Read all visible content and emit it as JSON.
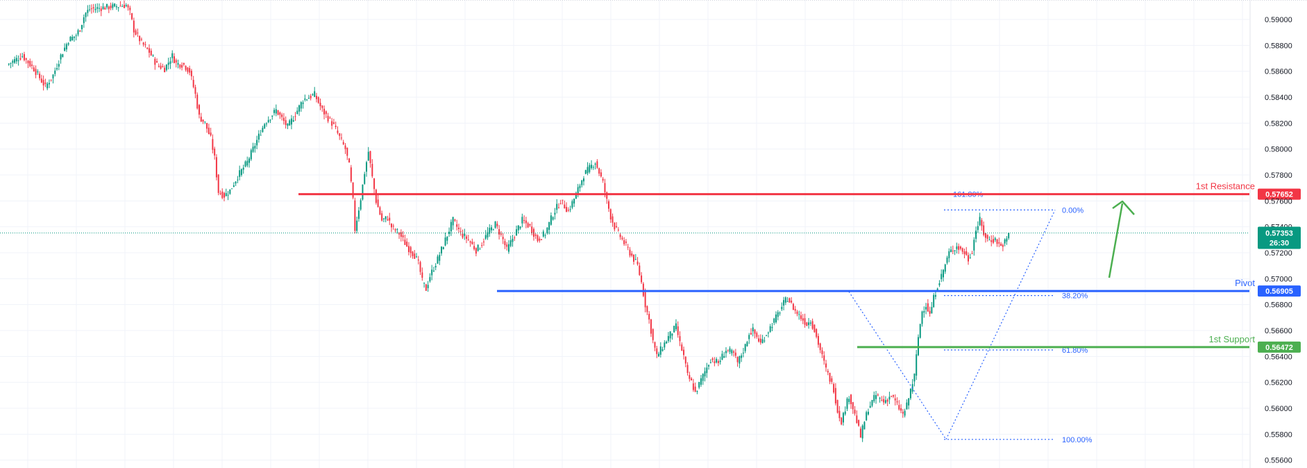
{
  "chart_data": {
    "type": "candlestick",
    "ylim": [
      0.5555,
      0.5915
    ],
    "grid": true,
    "y_ticks": [
      "0.59000",
      "0.58800",
      "0.58600",
      "0.58400",
      "0.58200",
      "0.58000",
      "0.57800",
      "0.57600",
      "0.57400",
      "0.57200",
      "0.57000",
      "0.56800",
      "0.56600",
      "0.56400",
      "0.56200",
      "0.56000",
      "0.55800",
      "0.55600"
    ],
    "current_price": {
      "value": 0.57353,
      "label": "0.57353",
      "countdown": "26:30",
      "color": "#089981"
    },
    "levels": [
      {
        "name": "1st Resistance",
        "value": 0.57652,
        "label": "0.57652",
        "color": "#f23645"
      },
      {
        "name": "Pivot",
        "value": 0.56905,
        "label": "0.56905",
        "color": "#2962ff"
      },
      {
        "name": "1st Support",
        "value": 0.56472,
        "label": "0.56472",
        "color": "#4caf50"
      }
    ],
    "fibonacci": {
      "color": "#2962ff",
      "levels": [
        {
          "label": "161.80%",
          "value": 0.57652
        },
        {
          "label": "0.00%",
          "value": 0.5753
        },
        {
          "label": "38.20%",
          "value": 0.5687
        },
        {
          "label": "61.80%",
          "value": 0.5645
        },
        {
          "label": "100.00%",
          "value": 0.5576
        }
      ]
    },
    "candle_colors": {
      "up": "#089981",
      "down": "#f23645"
    },
    "path_points": [
      [
        0,
        0.5865
      ],
      [
        8,
        0.5872
      ],
      [
        14,
        0.5862
      ],
      [
        20,
        0.5848
      ],
      [
        24,
        0.5857
      ],
      [
        28,
        0.5872
      ],
      [
        32,
        0.5884
      ],
      [
        36,
        0.5888
      ],
      [
        38,
        0.5893
      ],
      [
        40,
        0.5902
      ],
      [
        41,
        0.5905
      ],
      [
        43,
        0.5908
      ],
      [
        62,
        0.5911
      ],
      [
        64,
        0.5905
      ],
      [
        66,
        0.5892
      ],
      [
        70,
        0.5882
      ],
      [
        74,
        0.5875
      ],
      [
        78,
        0.5865
      ],
      [
        82,
        0.5862
      ],
      [
        86,
        0.5872
      ],
      [
        88,
        0.5866
      ],
      [
        92,
        0.5865
      ],
      [
        95,
        0.586
      ],
      [
        98,
        0.5842
      ],
      [
        100,
        0.5825
      ],
      [
        103,
        0.582
      ],
      [
        106,
        0.5808
      ],
      [
        108,
        0.5793
      ],
      [
        110,
        0.5767
      ],
      [
        113,
        0.5764
      ],
      [
        116,
        0.5768
      ],
      [
        120,
        0.5779
      ],
      [
        125,
        0.579
      ],
      [
        128,
        0.58
      ],
      [
        134,
        0.582
      ],
      [
        140,
        0.583
      ],
      [
        146,
        0.5817
      ],
      [
        150,
        0.5827
      ],
      [
        154,
        0.5838
      ],
      [
        160,
        0.5842
      ],
      [
        164,
        0.583
      ],
      [
        170,
        0.5818
      ],
      [
        174,
        0.5806
      ],
      [
        176,
        0.58
      ],
      [
        178,
        0.5787
      ],
      [
        180,
        0.576
      ],
      [
        181,
        0.5738
      ],
      [
        184,
        0.5762
      ],
      [
        186,
        0.5782
      ],
      [
        188,
        0.5798
      ],
      [
        190,
        0.5778
      ],
      [
        192,
        0.576
      ],
      [
        195,
        0.5745
      ],
      [
        198,
        0.5747
      ],
      [
        200,
        0.574
      ],
      [
        204,
        0.5735
      ],
      [
        208,
        0.5725
      ],
      [
        212,
        0.5718
      ],
      [
        214,
        0.5712
      ],
      [
        216,
        0.5698
      ],
      [
        218,
        0.5692
      ],
      [
        220,
        0.5702
      ],
      [
        224,
        0.5715
      ],
      [
        228,
        0.573
      ],
      [
        232,
        0.5745
      ],
      [
        236,
        0.5735
      ],
      [
        240,
        0.573
      ],
      [
        244,
        0.5722
      ],
      [
        246,
        0.5725
      ],
      [
        250,
        0.5735
      ],
      [
        254,
        0.5742
      ],
      [
        258,
        0.573
      ],
      [
        260,
        0.5722
      ],
      [
        264,
        0.5734
      ],
      [
        268,
        0.5745
      ],
      [
        272,
        0.574
      ],
      [
        276,
        0.573
      ],
      [
        280,
        0.5735
      ],
      [
        284,
        0.575
      ],
      [
        288,
        0.576
      ],
      [
        292,
        0.5752
      ],
      [
        296,
        0.5765
      ],
      [
        300,
        0.578
      ],
      [
        304,
        0.5787
      ],
      [
        306,
        0.579
      ],
      [
        308,
        0.5782
      ],
      [
        310,
        0.5774
      ],
      [
        312,
        0.576
      ],
      [
        314,
        0.5748
      ],
      [
        316,
        0.574
      ],
      [
        320,
        0.573
      ],
      [
        324,
        0.572
      ],
      [
        328,
        0.571
      ],
      [
        330,
        0.5697
      ],
      [
        332,
        0.568
      ],
      [
        334,
        0.5668
      ],
      [
        336,
        0.5652
      ],
      [
        338,
        0.564
      ],
      [
        340,
        0.5645
      ],
      [
        344,
        0.5655
      ],
      [
        348,
        0.5663
      ],
      [
        350,
        0.565
      ],
      [
        352,
        0.564
      ],
      [
        354,
        0.5625
      ],
      [
        356,
        0.562
      ],
      [
        358,
        0.5612
      ],
      [
        362,
        0.5625
      ],
      [
        366,
        0.5638
      ],
      [
        370,
        0.5635
      ],
      [
        374,
        0.5645
      ],
      [
        378,
        0.5642
      ],
      [
        380,
        0.5635
      ],
      [
        384,
        0.5648
      ],
      [
        386,
        0.5658
      ],
      [
        388,
        0.566
      ],
      [
        392,
        0.565
      ],
      [
        396,
        0.566
      ],
      [
        400,
        0.567
      ],
      [
        404,
        0.5681
      ],
      [
        406,
        0.5685
      ],
      [
        410,
        0.5675
      ],
      [
        413,
        0.567
      ],
      [
        416,
        0.5665
      ],
      [
        418,
        0.5668
      ],
      [
        420,
        0.566
      ],
      [
        423,
        0.5645
      ],
      [
        426,
        0.563
      ],
      [
        430,
        0.5615
      ],
      [
        432,
        0.5598
      ],
      [
        434,
        0.559
      ],
      [
        436,
        0.56
      ],
      [
        438,
        0.561
      ],
      [
        440,
        0.56
      ],
      [
        442,
        0.559
      ],
      [
        444,
        0.5578
      ],
      [
        446,
        0.559
      ],
      [
        448,
        0.56
      ],
      [
        452,
        0.561
      ],
      [
        456,
        0.5605
      ],
      [
        460,
        0.561
      ],
      [
        464,
        0.56
      ],
      [
        466,
        0.5595
      ],
      [
        468,
        0.5602
      ],
      [
        470,
        0.5614
      ],
      [
        472,
        0.5625
      ],
      [
        474,
        0.5655
      ],
      [
        476,
        0.5675
      ],
      [
        478,
        0.568
      ],
      [
        480,
        0.5672
      ],
      [
        482,
        0.5685
      ],
      [
        484,
        0.5695
      ],
      [
        486,
        0.5702
      ],
      [
        490,
        0.572
      ],
      [
        494,
        0.5725
      ],
      [
        498,
        0.572
      ],
      [
        500,
        0.5715
      ],
      [
        502,
        0.5722
      ],
      [
        504,
        0.5738
      ],
      [
        506,
        0.5745
      ],
      [
        508,
        0.5735
      ],
      [
        510,
        0.573
      ],
      [
        514,
        0.573
      ],
      [
        517,
        0.5725
      ],
      [
        520,
        0.573
      ],
      [
        521,
        0.5735
      ]
    ]
  }
}
